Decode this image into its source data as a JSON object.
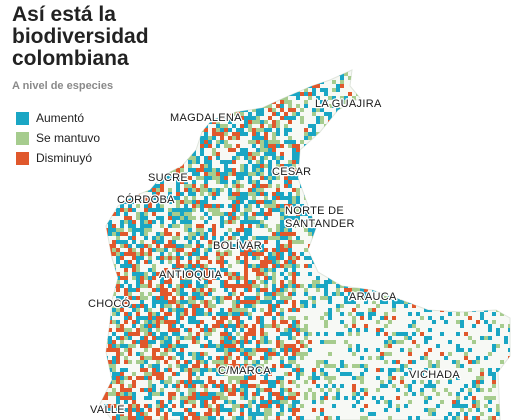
{
  "title_lines": [
    "Así está la",
    "biodiversidad",
    "colombiana"
  ],
  "subtitle": "A nivel de especies",
  "legend": [
    {
      "label": "Aumentó",
      "color": "#1aa6c4"
    },
    {
      "label": "Se mantuvo",
      "color": "#a6cc8e"
    },
    {
      "label": "Disminuyó",
      "color": "#e0582c"
    }
  ],
  "regions": [
    "LA GUAJIRA",
    "MAGDALENA",
    "CESAR",
    "SUCRE",
    "CÓRDOBA",
    "NORTE DE SANTANDER",
    "BOLÍVAR",
    "ANTIOQUIA",
    "ARAUCA",
    "CHOCÓ",
    "C/MARCA",
    "VICHADA",
    "VALLE"
  ]
}
